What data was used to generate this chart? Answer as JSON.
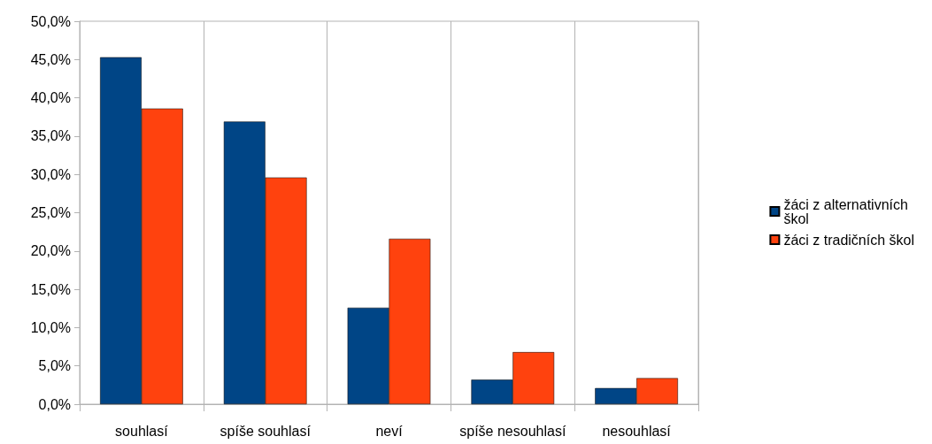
{
  "chart_data": {
    "type": "bar",
    "categories": [
      "souhlasí",
      "spíše souhlasí",
      "neví",
      "spíše nesouhlasí",
      "nesouhlasí"
    ],
    "series": [
      {
        "name": "žáci z alternativních škol",
        "color": "#004586",
        "values": [
          45.3,
          36.9,
          12.6,
          3.2,
          2.1
        ]
      },
      {
        "name": "žáci z tradičních škol",
        "color": "#ff420e",
        "values": [
          38.6,
          29.6,
          21.6,
          6.8,
          3.4
        ]
      }
    ],
    "ylim": [
      0,
      50
    ],
    "yticks": [
      {
        "value": 0,
        "label": "0,0%"
      },
      {
        "value": 5,
        "label": "5,0%"
      },
      {
        "value": 10,
        "label": "10,0%"
      },
      {
        "value": 15,
        "label": "15,0%"
      },
      {
        "value": 20,
        "label": "20,0%"
      },
      {
        "value": 25,
        "label": "25,0%"
      },
      {
        "value": 30,
        "label": "30,0%"
      },
      {
        "value": 35,
        "label": "35,0%"
      },
      {
        "value": 40,
        "label": "40,0%"
      },
      {
        "value": 45,
        "label": "45,0%"
      },
      {
        "value": 50,
        "label": "50,0%"
      }
    ],
    "grid": "x",
    "legend": "right"
  }
}
